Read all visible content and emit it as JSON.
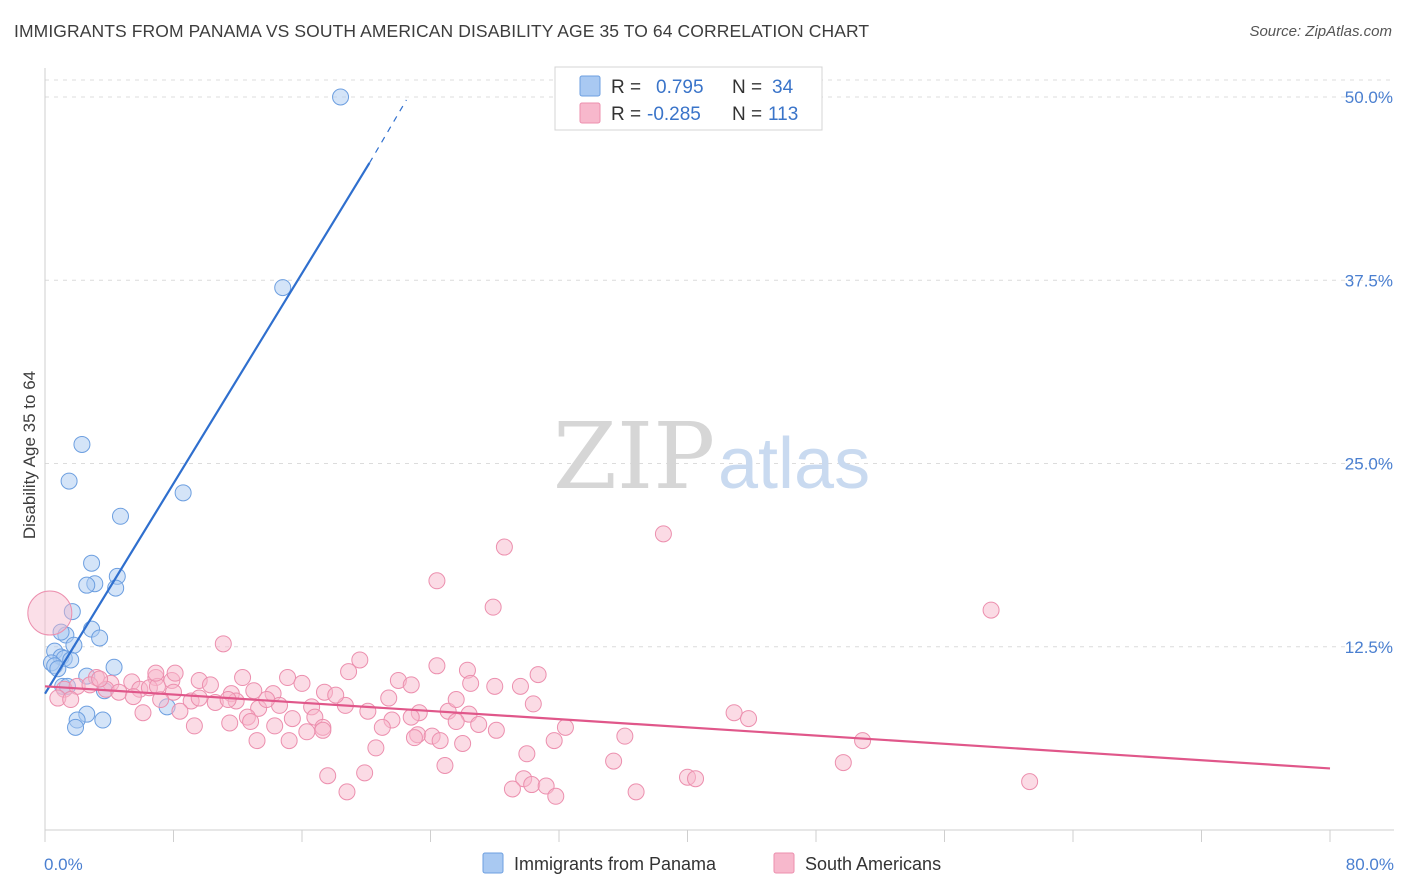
{
  "header": {
    "title": "IMMIGRANTS FROM PANAMA VS SOUTH AMERICAN DISABILITY AGE 35 TO 64 CORRELATION CHART",
    "source": "Source: ZipAtlas.com"
  },
  "watermark": {
    "part1": "ZIP",
    "part2": "atlas"
  },
  "legend": {
    "r_label": "R =",
    "n_label": "N =",
    "rows": [
      {
        "r": "0.795",
        "n": "34",
        "color": "#a9c9f2",
        "stroke": "#6d9fe0"
      },
      {
        "r": "-0.285",
        "n": "113",
        "color": "#f7b8cc",
        "stroke": "#ec8fae"
      }
    ]
  },
  "chart_data": {
    "type": "scatter",
    "title": "IMMIGRANTS FROM PANAMA VS SOUTH AMERICAN DISABILITY AGE 35 TO 64 CORRELATION CHART",
    "xlabel": "",
    "ylabel": "Disability Age 35 to 64",
    "xlim": [
      0,
      80
    ],
    "ylim": [
      0,
      51
    ],
    "x_tick_labels": [
      "0.0%",
      "80.0%"
    ],
    "y_ticks": [
      12.5,
      25.0,
      37.5,
      50.0
    ],
    "y_tick_labels": [
      "12.5%",
      "25.0%",
      "37.5%",
      "50.0%"
    ],
    "grid": true,
    "series": [
      {
        "name": "Immigrants from Panama",
        "color": "#a9c9f2",
        "stroke": "#6d9fe0",
        "line_color": "#2f6fce",
        "trend": {
          "x0": 0.0,
          "y0": 9.3,
          "x1": 20.2,
          "y1": 45.5,
          "dash_to_x": 22.5,
          "dash_to_y": 49.8
        },
        "points": [
          [
            18.4,
            50.0
          ],
          [
            14.8,
            37.0
          ],
          [
            2.3,
            26.3
          ],
          [
            1.5,
            23.8
          ],
          [
            8.6,
            23.0
          ],
          [
            4.7,
            21.4
          ],
          [
            2.9,
            18.2
          ],
          [
            4.5,
            17.3
          ],
          [
            3.1,
            16.8
          ],
          [
            2.6,
            16.7
          ],
          [
            4.4,
            16.5
          ],
          [
            1.7,
            14.9
          ],
          [
            1.3,
            13.3
          ],
          [
            2.9,
            13.7
          ],
          [
            1.0,
            13.5
          ],
          [
            3.4,
            13.1
          ],
          [
            1.8,
            12.6
          ],
          [
            0.6,
            12.2
          ],
          [
            1.0,
            11.8
          ],
          [
            1.2,
            11.7
          ],
          [
            1.6,
            11.6
          ],
          [
            0.4,
            11.4
          ],
          [
            0.6,
            11.2
          ],
          [
            0.8,
            11.0
          ],
          [
            4.3,
            11.1
          ],
          [
            2.6,
            10.5
          ],
          [
            1.1,
            9.8
          ],
          [
            1.4,
            9.8
          ],
          [
            3.7,
            9.5
          ],
          [
            7.6,
            8.4
          ],
          [
            2.6,
            7.9
          ],
          [
            3.6,
            7.5
          ],
          [
            2.0,
            7.5
          ],
          [
            1.9,
            7.0
          ]
        ]
      },
      {
        "name": "South Americans",
        "color": "#f7b8cc",
        "stroke": "#ec8fae",
        "line_color": "#e0578a",
        "trend": {
          "x0": 0.0,
          "y0": 9.8,
          "x1": 80.0,
          "y1": 4.2
        },
        "points": [
          [
            0.3,
            14.8
          ],
          [
            38.5,
            20.2
          ],
          [
            28.6,
            19.3
          ],
          [
            24.4,
            17.0
          ],
          [
            58.9,
            15.0
          ],
          [
            27.9,
            15.2
          ],
          [
            11.1,
            12.7
          ],
          [
            19.6,
            11.6
          ],
          [
            24.4,
            11.2
          ],
          [
            26.3,
            10.9
          ],
          [
            18.9,
            10.8
          ],
          [
            30.7,
            10.6
          ],
          [
            6.9,
            10.4
          ],
          [
            12.3,
            10.4
          ],
          [
            15.1,
            10.4
          ],
          [
            22.0,
            10.2
          ],
          [
            16.0,
            10.0
          ],
          [
            26.5,
            10.0
          ],
          [
            3.2,
            10.4
          ],
          [
            4.1,
            10.0
          ],
          [
            5.4,
            10.1
          ],
          [
            7.9,
            10.2
          ],
          [
            9.6,
            10.2
          ],
          [
            10.3,
            9.9
          ],
          [
            1.2,
            9.6
          ],
          [
            2.0,
            9.8
          ],
          [
            2.8,
            9.9
          ],
          [
            3.8,
            9.6
          ],
          [
            4.6,
            9.4
          ],
          [
            5.9,
            9.6
          ],
          [
            6.5,
            9.7
          ],
          [
            8.0,
            9.4
          ],
          [
            11.6,
            9.3
          ],
          [
            14.2,
            9.3
          ],
          [
            17.4,
            9.4
          ],
          [
            28.0,
            9.8
          ],
          [
            29.6,
            9.8
          ],
          [
            0.8,
            9.0
          ],
          [
            1.6,
            8.9
          ],
          [
            7.2,
            8.9
          ],
          [
            9.1,
            8.8
          ],
          [
            10.6,
            8.7
          ],
          [
            11.9,
            8.8
          ],
          [
            13.3,
            8.3
          ],
          [
            14.6,
            8.5
          ],
          [
            16.6,
            8.4
          ],
          [
            18.7,
            8.5
          ],
          [
            20.1,
            8.1
          ],
          [
            23.3,
            8.0
          ],
          [
            25.1,
            8.1
          ],
          [
            26.4,
            7.9
          ],
          [
            30.4,
            8.6
          ],
          [
            42.9,
            8.0
          ],
          [
            43.8,
            7.6
          ],
          [
            6.1,
            8.0
          ],
          [
            8.4,
            8.1
          ],
          [
            12.6,
            7.7
          ],
          [
            15.4,
            7.6
          ],
          [
            16.8,
            7.7
          ],
          [
            21.6,
            7.5
          ],
          [
            22.8,
            7.7
          ],
          [
            25.6,
            7.4
          ],
          [
            27.0,
            7.2
          ],
          [
            11.5,
            7.3
          ],
          [
            12.8,
            7.4
          ],
          [
            14.3,
            7.1
          ],
          [
            17.3,
            7.0
          ],
          [
            9.3,
            7.1
          ],
          [
            21.0,
            7.0
          ],
          [
            23.2,
            6.5
          ],
          [
            24.1,
            6.4
          ],
          [
            28.1,
            6.8
          ],
          [
            32.4,
            7.0
          ],
          [
            36.1,
            6.4
          ],
          [
            23.0,
            6.3
          ],
          [
            31.7,
            6.1
          ],
          [
            16.3,
            6.7
          ],
          [
            17.3,
            6.8
          ],
          [
            13.2,
            6.1
          ],
          [
            15.2,
            6.1
          ],
          [
            24.6,
            6.1
          ],
          [
            26.0,
            5.9
          ],
          [
            20.6,
            5.6
          ],
          [
            50.9,
            6.1
          ],
          [
            35.4,
            4.7
          ],
          [
            24.9,
            4.4
          ],
          [
            49.7,
            4.6
          ],
          [
            40.0,
            3.6
          ],
          [
            40.5,
            3.5
          ],
          [
            17.6,
            3.7
          ],
          [
            19.9,
            3.9
          ],
          [
            29.8,
            3.5
          ],
          [
            30.3,
            3.1
          ],
          [
            29.1,
            2.8
          ],
          [
            31.2,
            3.0
          ],
          [
            18.8,
            2.6
          ],
          [
            36.8,
            2.6
          ],
          [
            31.8,
            2.3
          ],
          [
            61.3,
            3.3
          ],
          [
            30.0,
            5.2
          ],
          [
            5.5,
            9.1
          ],
          [
            7.0,
            9.8
          ],
          [
            9.6,
            9.0
          ],
          [
            11.4,
            8.9
          ],
          [
            13.8,
            8.9
          ],
          [
            18.1,
            9.2
          ],
          [
            21.4,
            9.0
          ],
          [
            25.6,
            8.9
          ],
          [
            22.8,
            9.9
          ],
          [
            13.0,
            9.5
          ],
          [
            3.4,
            10.3
          ],
          [
            6.9,
            10.7
          ],
          [
            8.1,
            10.7
          ]
        ]
      }
    ]
  }
}
